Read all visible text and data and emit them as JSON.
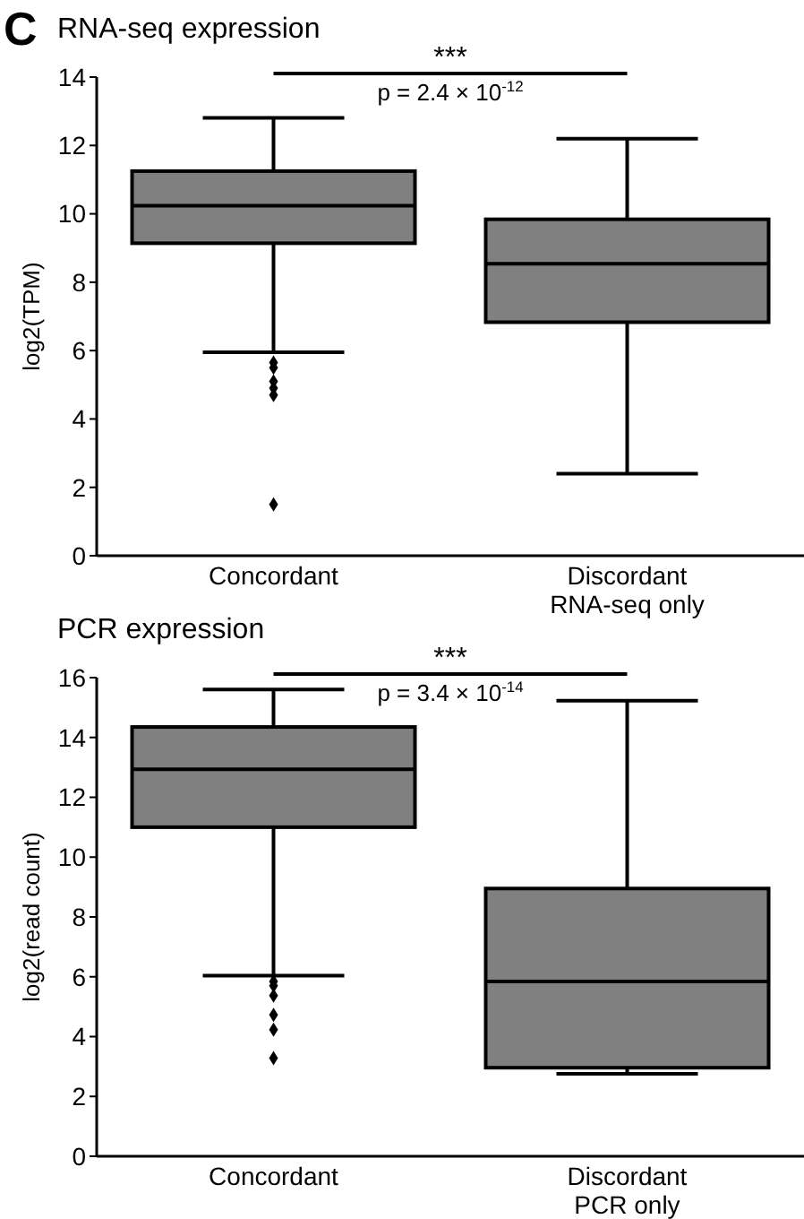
{
  "chart_data": [
    {
      "type": "box",
      "title": "RNA-seq expression",
      "ylabel": "log2(TPM)",
      "categories": [
        "Concordant",
        "Discordant\nRNA-seq only"
      ],
      "color": "#808080",
      "ylim": [
        0,
        14
      ],
      "yticks": [
        0,
        2,
        4,
        6,
        8,
        10,
        12,
        14
      ],
      "boxes": [
        {
          "low": 5.95,
          "q1": 9.14,
          "median": 10.24,
          "q3": 11.25,
          "high": 12.81,
          "outliers": [
            5.65,
            5.5,
            5.1,
            4.9,
            4.7,
            1.5
          ]
        },
        {
          "low": 2.4,
          "q1": 6.83,
          "median": 8.54,
          "q3": 9.84,
          "high": 12.2
        }
      ],
      "annotations": [
        "C",
        "***",
        "p = 2.4 × 10$^{-12}$"
      ]
    },
    {
      "type": "box",
      "title": "PCR expression",
      "ylabel": "log2(read count)",
      "categories": [
        "Concordant",
        "Discordant\nPCR only"
      ],
      "color": "#808080",
      "ylim": [
        0,
        16
      ],
      "yticks": [
        0,
        2,
        4,
        6,
        8,
        10,
        12,
        14,
        16
      ],
      "boxes": [
        {
          "low": 6.04,
          "q1": 11.0,
          "median": 12.94,
          "q3": 14.35,
          "high": 15.6,
          "outliers": [
            5.84,
            5.7,
            5.37,
            4.73,
            4.23,
            3.28
          ]
        },
        {
          "low": 2.76,
          "q1": 2.96,
          "median": 5.84,
          "q3": 8.95,
          "high": 15.23
        }
      ],
      "annotations": [
        "***",
        "p = 3.4 × 10$^{-14}$"
      ]
    }
  ]
}
